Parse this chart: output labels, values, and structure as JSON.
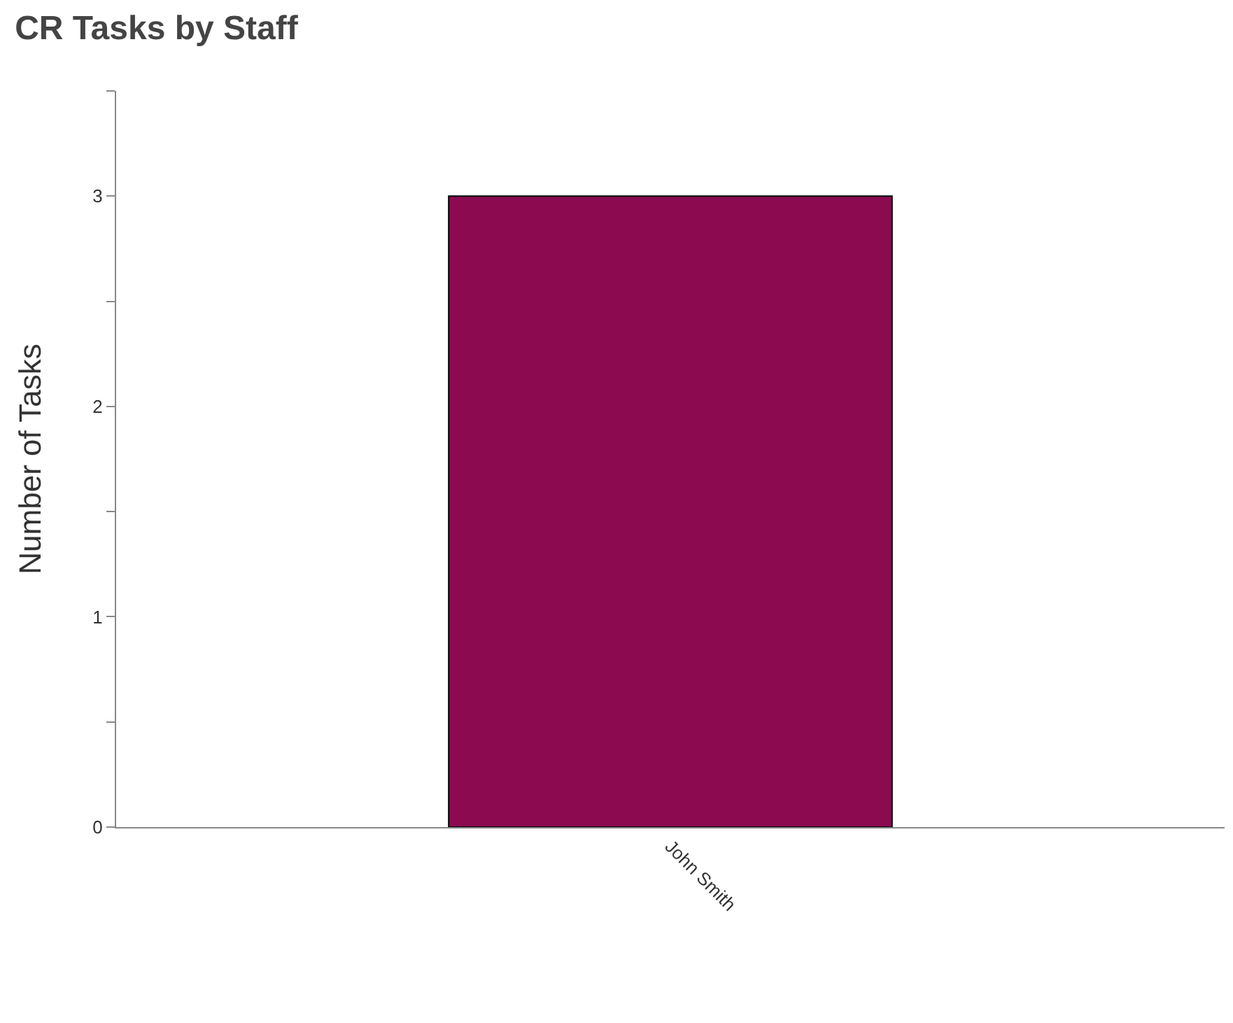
{
  "chart_data": {
    "type": "bar",
    "title": "CR Tasks by Staff",
    "ylabel": "Number of Tasks",
    "categories": [
      "John Smith"
    ],
    "values": [
      3
    ],
    "color": "#8b0a50",
    "ylim": [
      0,
      3.5
    ],
    "yticks": [
      0,
      {
        "value": 0.5,
        "label": null
      },
      1,
      {
        "value": 1.5,
        "label": null
      },
      2,
      {
        "value": 2.5,
        "label": null
      },
      3,
      {
        "value": 3.5,
        "label": null
      }
    ]
  }
}
